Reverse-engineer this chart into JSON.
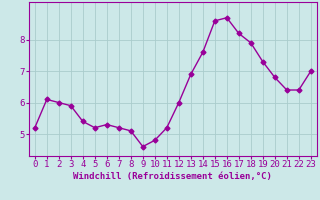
{
  "x": [
    0,
    1,
    2,
    3,
    4,
    5,
    6,
    7,
    8,
    9,
    10,
    11,
    12,
    13,
    14,
    15,
    16,
    17,
    18,
    19,
    20,
    21,
    22,
    23
  ],
  "y": [
    5.2,
    6.1,
    6.0,
    5.9,
    5.4,
    5.2,
    5.3,
    5.2,
    5.1,
    4.6,
    4.8,
    5.2,
    6.0,
    6.9,
    7.6,
    8.6,
    8.7,
    8.2,
    7.9,
    7.3,
    6.8,
    6.4,
    6.4,
    7.0
  ],
  "line_color": "#990099",
  "marker": "D",
  "markersize": 2.5,
  "linewidth": 1.0,
  "bg_color": "#cce8e8",
  "grid_color": "#aacccc",
  "xlabel": "Windchill (Refroidissement éolien,°C)",
  "xlim": [
    -0.5,
    23.5
  ],
  "ylim": [
    4.3,
    9.2
  ],
  "yticks": [
    5,
    6,
    7,
    8
  ],
  "xlabel_fontsize": 6.5,
  "tick_fontsize": 6.5
}
